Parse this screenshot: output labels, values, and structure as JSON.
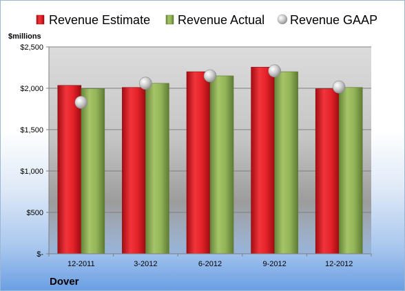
{
  "chart_data": {
    "type": "bar",
    "unit_label": "$millions",
    "company": "Dover",
    "categories": [
      "12-2011",
      "3-2012",
      "6-2012",
      "9-2012",
      "12-2012"
    ],
    "series": [
      {
        "name": "Revenue Estimate",
        "kind": "bar",
        "color": "#e01f26",
        "values": [
          2035,
          2010,
          2200,
          2255,
          1995
        ]
      },
      {
        "name": "Revenue Actual",
        "kind": "bar",
        "color": "#8fb04f",
        "values": [
          1995,
          2060,
          2150,
          2200,
          2010
        ]
      },
      {
        "name": "Revenue GAAP",
        "kind": "marker",
        "color": "#c8c8c8",
        "values": [
          1830,
          2060,
          2150,
          2210,
          2015
        ]
      }
    ],
    "y_ticks": [
      0,
      500,
      1000,
      1500,
      2000,
      2500
    ],
    "y_tick_labels": [
      "$-",
      "$500",
      "$1,000",
      "$1,500",
      "$2,000",
      "$2,500"
    ],
    "ylim": [
      0,
      2500
    ],
    "grid": true,
    "legend_position": "top"
  }
}
